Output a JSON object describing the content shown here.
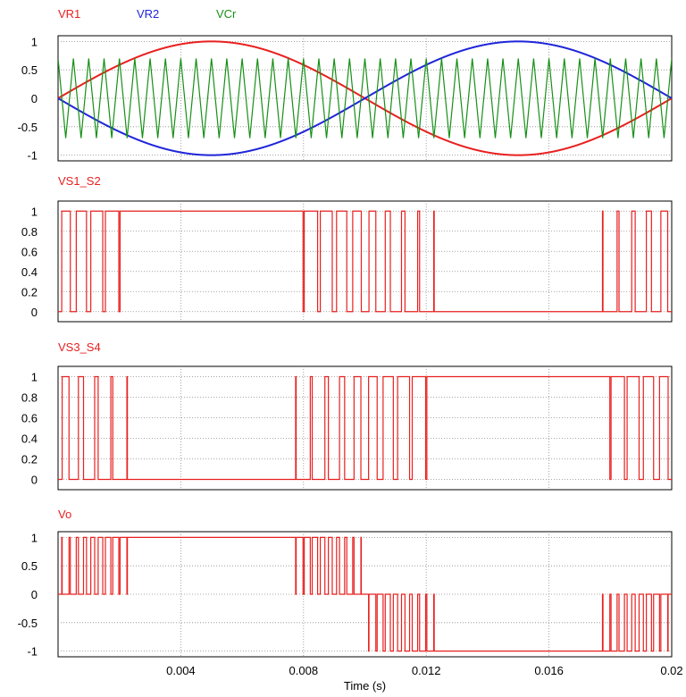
{
  "xaxis": {
    "label": "Time (s)",
    "range": [
      0,
      0.02
    ],
    "ticks": [
      0.004,
      0.008,
      0.012,
      0.016,
      0.02
    ],
    "tick_labels": [
      "0.004",
      "0.008",
      "0.012",
      "0.016",
      "0.02"
    ]
  },
  "chart_data": [
    {
      "type": "line",
      "legend": [
        "VR1",
        "VR2",
        "VCr"
      ],
      "ylim": [
        -1.1,
        1.1
      ],
      "yticks": [
        1,
        0.5,
        0,
        -0.5,
        -1
      ],
      "ytick_labels": [
        "1",
        "0.5",
        "0",
        "-0.5",
        "-1"
      ],
      "grid": true,
      "series": [
        {
          "name": "VR1",
          "color": "#e8201f",
          "function": "sine",
          "amplitude": 1,
          "frequency_hz": 50,
          "phase": "0"
        },
        {
          "name": "VR2",
          "color": "#1f25d9",
          "function": "sine",
          "amplitude": 1,
          "frequency_hz": 50,
          "phase": "180deg"
        },
        {
          "name": "VCr",
          "color": "#169016",
          "function": "triangle",
          "amplitude": 0.7,
          "frequency_hz": 2000
        }
      ]
    },
    {
      "type": "line",
      "legend": [
        "VS1_S2"
      ],
      "ylim": [
        -0.1,
        1.1
      ],
      "yticks": [
        1,
        0.8,
        0.6,
        0.4,
        0.2,
        0
      ],
      "ytick_labels": [
        "1",
        "0.8",
        "0.6",
        "0.4",
        "0.2",
        "0"
      ],
      "grid": true,
      "series": [
        {
          "name": "VS1_S2",
          "color": "#e8201f",
          "function": "pwm",
          "rule": "VR1 > VCr",
          "levels": [
            0,
            1
          ]
        }
      ]
    },
    {
      "type": "line",
      "legend": [
        "VS3_S4"
      ],
      "ylim": [
        -0.1,
        1.1
      ],
      "yticks": [
        1,
        0.8,
        0.6,
        0.4,
        0.2,
        0
      ],
      "ytick_labels": [
        "1",
        "0.8",
        "0.6",
        "0.4",
        "0.2",
        "0"
      ],
      "grid": true,
      "series": [
        {
          "name": "VS3_S4",
          "color": "#e8201f",
          "function": "pwm",
          "rule": "VR2 > VCr",
          "levels": [
            0,
            1
          ]
        }
      ]
    },
    {
      "type": "line",
      "legend": [
        "Vo"
      ],
      "ylim": [
        -1.1,
        1.1
      ],
      "yticks": [
        1,
        0.5,
        0,
        -0.5,
        -1
      ],
      "ytick_labels": [
        "1",
        "0.5",
        "0",
        "-0.5",
        "-1"
      ],
      "grid": true,
      "series": [
        {
          "name": "Vo",
          "color": "#e8201f",
          "function": "difference",
          "rule": "VS1_S2 - VS3_S4",
          "levels": [
            -1,
            0,
            1
          ]
        }
      ]
    }
  ]
}
